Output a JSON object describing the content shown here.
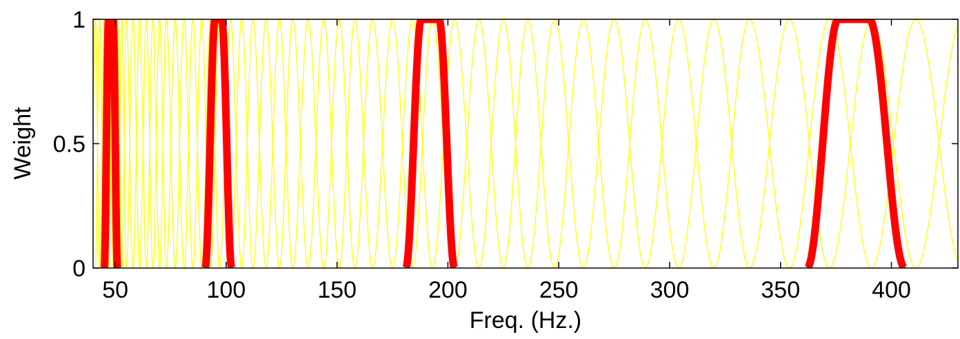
{
  "chart_data": {
    "type": "line",
    "title": "",
    "xlabel": "Freq. (Hz.)",
    "ylabel": "Weight",
    "xlim": [
      40,
      430
    ],
    "ylim": [
      0,
      1
    ],
    "xticks": [
      50,
      100,
      150,
      200,
      250,
      300,
      350,
      400
    ],
    "yticks": [
      0,
      0.5,
      1
    ],
    "ytick_labels": [
      "0",
      "0.5",
      "1"
    ],
    "grid": false,
    "legend": "none",
    "filter_bank": {
      "shape": "raised-cosine (flat top)",
      "color": "#ffff00",
      "centers_hz": [
        41,
        43,
        45,
        47,
        49,
        51,
        53,
        55,
        58,
        61,
        64,
        67,
        70,
        73,
        77,
        81,
        85,
        89,
        93,
        97,
        102,
        107,
        112,
        118,
        124,
        130,
        137,
        144,
        151,
        158,
        166,
        175,
        184,
        193,
        203,
        214,
        225,
        236,
        248,
        261,
        275,
        289,
        304,
        320,
        336,
        354,
        372,
        391,
        411,
        432
      ]
    },
    "series": [
      {
        "color": "#ff0000",
        "points": [
          [
            45,
            0
          ],
          [
            47,
            1
          ],
          [
            49,
            1
          ],
          [
            51,
            0
          ]
        ]
      },
      {
        "color": "#ff0000",
        "points": [
          [
            90.5,
            0
          ],
          [
            95,
            1
          ],
          [
            98,
            1
          ],
          [
            102.5,
            0
          ]
        ]
      },
      {
        "color": "#ff0000",
        "points": [
          [
            181,
            0
          ],
          [
            188,
            1
          ],
          [
            196,
            1
          ],
          [
            203,
            0
          ]
        ]
      },
      {
        "color": "#ff0000",
        "points": [
          [
            362,
            0
          ],
          [
            376,
            1
          ],
          [
            390,
            1
          ],
          [
            406,
            0
          ]
        ]
      }
    ]
  }
}
